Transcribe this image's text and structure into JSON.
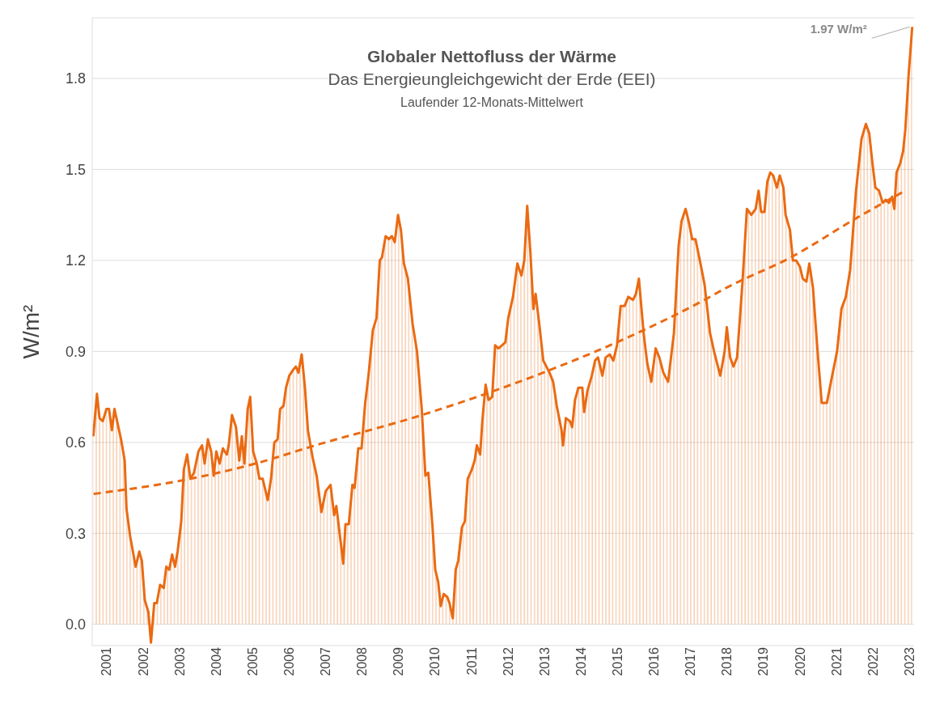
{
  "chart_data": {
    "type": "area",
    "title": "Globaler Nettofluss der Wärme",
    "subtitle": "Das Energieungleichgewicht der Erde (EEI)",
    "ylabel": "W/m²",
    "annotations": [
      "Laufender 12-Monats-Mittelwert",
      {
        "text": "1.97 W/m²",
        "x": 2023.57,
        "y": 1.97
      }
    ],
    "xlim": [
      2001.1,
      2023.62
    ],
    "xticks": [
      {
        "value": 2001.5,
        "label": "2001"
      },
      {
        "value": 2002.5,
        "label": "2002"
      },
      {
        "value": 2003.5,
        "label": "2003"
      },
      {
        "value": 2004.5,
        "label": "2004"
      },
      {
        "value": 2005.5,
        "label": "2005"
      },
      {
        "value": 2006.5,
        "label": "2006"
      },
      {
        "value": 2007.5,
        "label": "2007"
      },
      {
        "value": 2008.5,
        "label": "2008"
      },
      {
        "value": 2009.5,
        "label": "2009"
      },
      {
        "value": 2010.5,
        "label": "2010"
      },
      {
        "value": 2011.5,
        "label": "2011"
      },
      {
        "value": 2012.5,
        "label": "2012"
      },
      {
        "value": 2013.5,
        "label": "2013"
      },
      {
        "value": 2014.5,
        "label": "2014"
      },
      {
        "value": 2015.5,
        "label": "2015"
      },
      {
        "value": 2016.5,
        "label": "2016"
      },
      {
        "value": 2017.5,
        "label": "2017"
      },
      {
        "value": 2018.5,
        "label": "2018"
      },
      {
        "value": 2019.5,
        "label": "2019"
      },
      {
        "value": 2020.5,
        "label": "2020"
      },
      {
        "value": 2021.5,
        "label": "2021"
      },
      {
        "value": 2022.5,
        "label": "2022"
      },
      {
        "value": 2023.5,
        "label": "2023"
      }
    ],
    "ylim": [
      -0.07,
      2.0
    ],
    "yticks": [
      {
        "value": 0,
        "label": "0.0"
      },
      0.3,
      0.6,
      0.9,
      1.2,
      1.5,
      1.8
    ],
    "grid": "y",
    "series": [
      {
        "color": "#ea6a12",
        "line_style": "solid",
        "x": [
          2001.13,
          2001.23,
          2001.3,
          2001.39,
          2001.49,
          2001.56,
          2001.64,
          2001.71,
          2001.89,
          2001.99,
          2002.04,
          2002.14,
          2002.29,
          2002.39,
          2002.46,
          2002.54,
          2002.64,
          2002.71,
          2002.8,
          2002.87,
          2002.96,
          2003.06,
          2003.13,
          2003.21,
          2003.29,
          2003.37,
          2003.44,
          2003.54,
          2003.61,
          2003.7,
          2003.79,
          2003.89,
          2004.01,
          2004.11,
          2004.18,
          2004.27,
          2004.36,
          2004.43,
          2004.5,
          2004.59,
          2004.68,
          2004.79,
          2004.84,
          2004.93,
          2005.04,
          2005.13,
          2005.2,
          2005.27,
          2005.36,
          2005.43,
          2005.51,
          2005.61,
          2005.68,
          2005.77,
          2005.91,
          2006.0,
          2006.09,
          2006.18,
          2006.25,
          2006.34,
          2006.41,
          2006.5,
          2006.61,
          2006.68,
          2006.75,
          2006.84,
          2006.93,
          2007.01,
          2007.14,
          2007.25,
          2007.38,
          2007.5,
          2007.63,
          2007.73,
          2007.79,
          2007.88,
          2007.98,
          2008.04,
          2008.13,
          2008.23,
          2008.29,
          2008.39,
          2008.48,
          2008.58,
          2008.67,
          2008.79,
          2008.89,
          2008.98,
          2009.04,
          2009.14,
          2009.23,
          2009.31,
          2009.39,
          2009.48,
          2009.56,
          2009.64,
          2009.75,
          2009.88,
          2010.0,
          2010.13,
          2010.23,
          2010.31,
          2010.42,
          2010.5,
          2010.58,
          2010.65,
          2010.73,
          2010.83,
          2010.89,
          2010.98,
          2011.06,
          2011.13,
          2011.23,
          2011.31,
          2011.39,
          2011.5,
          2011.58,
          2011.64,
          2011.73,
          2011.79,
          2011.88,
          2011.96,
          2012.06,
          2012.14,
          2012.23,
          2012.33,
          2012.42,
          2012.5,
          2012.63,
          2012.75,
          2012.86,
          2012.94,
          2013.02,
          2013.11,
          2013.19,
          2013.25,
          2013.36,
          2013.46,
          2013.63,
          2013.73,
          2013.83,
          2013.96,
          2014.0,
          2014.08,
          2014.19,
          2014.25,
          2014.33,
          2014.42,
          2014.53,
          2014.58,
          2014.67,
          2014.79,
          2014.88,
          2014.96,
          2015.08,
          2015.17,
          2015.28,
          2015.38,
          2015.48,
          2015.58,
          2015.69,
          2015.79,
          2015.92,
          2016.0,
          2016.08,
          2016.21,
          2016.31,
          2016.42,
          2016.54,
          2016.64,
          2016.75,
          2016.88,
          2016.96,
          2017.04,
          2017.17,
          2017.25,
          2017.36,
          2017.46,
          2017.54,
          2017.63,
          2017.75,
          2017.88,
          2018.03,
          2018.14,
          2018.31,
          2018.43,
          2018.49,
          2018.58,
          2018.67,
          2018.77,
          2018.92,
          2019.04,
          2019.16,
          2019.28,
          2019.36,
          2019.43,
          2019.52,
          2019.6,
          2019.68,
          2019.76,
          2019.86,
          2019.94,
          2020.04,
          2020.1,
          2020.22,
          2020.3,
          2020.39,
          2020.49,
          2020.57,
          2020.67,
          2020.75,
          2020.85,
          2020.97,
          2021.09,
          2021.23,
          2021.36,
          2021.51,
          2021.63,
          2021.75,
          2021.87,
          2022.03,
          2022.18,
          2022.3,
          2022.39,
          2022.48,
          2022.56,
          2022.66,
          2022.76,
          2022.84,
          2022.93,
          2023.02,
          2023.08,
          2023.14,
          2023.24,
          2023.32,
          2023.38,
          2023.47,
          2023.57
        ],
        "values": [
          0.62,
          0.76,
          0.68,
          0.67,
          0.71,
          0.71,
          0.64,
          0.71,
          0.61,
          0.54,
          0.38,
          0.29,
          0.19,
          0.24,
          0.21,
          0.08,
          0.04,
          -0.06,
          0.07,
          0.07,
          0.13,
          0.12,
          0.19,
          0.18,
          0.23,
          0.19,
          0.24,
          0.34,
          0.51,
          0.56,
          0.48,
          0.5,
          0.57,
          0.59,
          0.53,
          0.61,
          0.57,
          0.49,
          0.57,
          0.53,
          0.58,
          0.56,
          0.59,
          0.69,
          0.65,
          0.54,
          0.62,
          0.53,
          0.71,
          0.75,
          0.57,
          0.53,
          0.48,
          0.48,
          0.41,
          0.48,
          0.6,
          0.61,
          0.71,
          0.72,
          0.78,
          0.82,
          0.84,
          0.85,
          0.83,
          0.89,
          0.78,
          0.64,
          0.55,
          0.49,
          0.37,
          0.44,
          0.46,
          0.36,
          0.39,
          0.3,
          0.2,
          0.33,
          0.33,
          0.46,
          0.45,
          0.58,
          0.58,
          0.73,
          0.82,
          0.97,
          1.01,
          1.2,
          1.21,
          1.28,
          1.27,
          1.28,
          1.26,
          1.35,
          1.3,
          1.19,
          1.14,
          0.99,
          0.9,
          0.71,
          0.49,
          0.5,
          0.33,
          0.18,
          0.14,
          0.06,
          0.1,
          0.09,
          0.07,
          0.02,
          0.18,
          0.21,
          0.32,
          0.34,
          0.48,
          0.51,
          0.54,
          0.59,
          0.56,
          0.67,
          0.79,
          0.74,
          0.75,
          0.92,
          0.91,
          0.92,
          0.93,
          1.01,
          1.08,
          1.19,
          1.15,
          1.2,
          1.38,
          1.22,
          1.04,
          1.09,
          0.98,
          0.87,
          0.83,
          0.8,
          0.72,
          0.64,
          0.59,
          0.68,
          0.67,
          0.65,
          0.74,
          0.78,
          0.78,
          0.7,
          0.77,
          0.82,
          0.87,
          0.88,
          0.82,
          0.88,
          0.89,
          0.87,
          0.92,
          1.05,
          1.05,
          1.08,
          1.07,
          1.09,
          1.14,
          0.96,
          0.86,
          0.8,
          0.91,
          0.88,
          0.83,
          0.8,
          0.88,
          0.96,
          1.25,
          1.33,
          1.37,
          1.32,
          1.27,
          1.27,
          1.2,
          1.12,
          0.96,
          0.9,
          0.82,
          0.9,
          0.98,
          0.88,
          0.85,
          0.88,
          1.13,
          1.37,
          1.35,
          1.37,
          1.43,
          1.36,
          1.36,
          1.46,
          1.49,
          1.48,
          1.44,
          1.48,
          1.44,
          1.35,
          1.3,
          1.2,
          1.2,
          1.18,
          1.14,
          1.13,
          1.19,
          1.11,
          0.91,
          0.73,
          0.73,
          0.81,
          0.9,
          1.04,
          1.08,
          1.17,
          1.43,
          1.6,
          1.65,
          1.62,
          1.52,
          1.44,
          1.43,
          1.39,
          1.4,
          1.39,
          1.41,
          1.37,
          1.49,
          1.52,
          1.56,
          1.63,
          1.81,
          1.97
        ]
      },
      {
        "type": "line",
        "color": "#ea6a12",
        "line_style": "dashed",
        "x": [
          2001.14,
          2003.79,
          2005.57,
          2007.21,
          2010.13,
          2011.88,
          2013.46,
          2016.21,
          2017.88,
          2018.48,
          2020.24,
          2022.05,
          2023.38
        ],
        "values": [
          0.43,
          0.48,
          0.53,
          0.59,
          0.69,
          0.76,
          0.83,
          0.97,
          1.07,
          1.11,
          1.21,
          1.34,
          1.43
        ]
      }
    ]
  }
}
